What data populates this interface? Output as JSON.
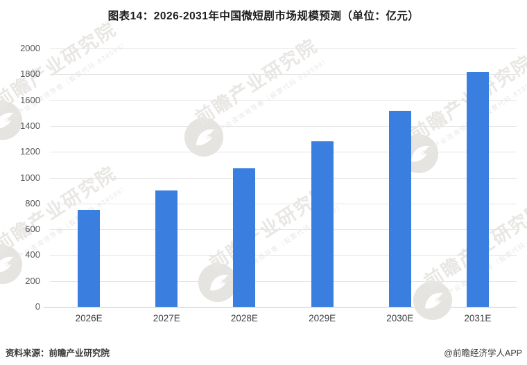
{
  "title": "图表14：2026-2031年中国微短剧市场规模预测（单位：亿元）",
  "chart_data": {
    "type": "bar",
    "categories": [
      "2026E",
      "2027E",
      "2028E",
      "2029E",
      "2030E",
      "2031E"
    ],
    "values": [
      750,
      900,
      1070,
      1280,
      1520,
      1820
    ],
    "title": "图表14：2026-2031年中国微短剧市场规模预测（单位：亿元）",
    "xlabel": "",
    "ylabel": "亿元",
    "ylim": [
      0,
      2000
    ],
    "ytick_step": 200,
    "grid": true,
    "legend": "none",
    "bar_color": "#3a7fe0",
    "grid_color": "#e4e4e4",
    "axis_line_color": "#c2c5c9"
  },
  "footer": {
    "source": "资料来源：前瞻产业研究院",
    "credit": "@前瞻经济学人APP"
  },
  "watermark": {
    "main": "前瞻产业研究院",
    "sub": "中国产业咨询领导者（股票代码·839599）",
    "color": "#e9e7e4",
    "logo": "qianzhan-bird-logo"
  }
}
